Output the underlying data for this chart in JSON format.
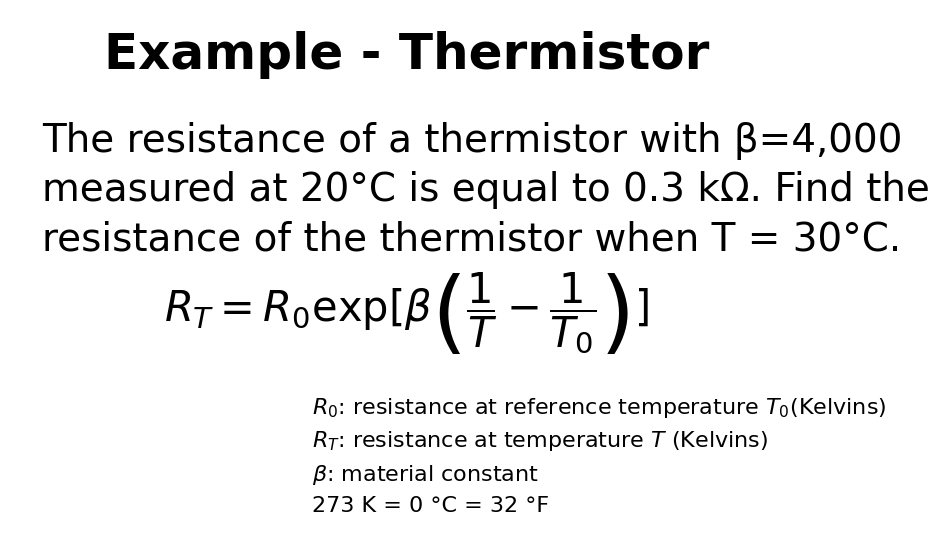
{
  "title": "Example - Thermistor",
  "background_color": "#ffffff",
  "text_color": "#000000",
  "title_fontsize": 36,
  "title_fontweight": "bold",
  "body_text_line1": "The resistance of a thermistor with β=4,000",
  "body_text_line2": "measured at 20°C is equal to 0.3 kΩ. Find the",
  "body_text_line3": "resistance of the thermistor when T = 30°C.",
  "note1": "$R_0$: resistance at reference temperature $T_0$(Kelvins)",
  "note2": "$R_T$: resistance at temperature $T$ (Kelvins)",
  "note3": "$\\beta$: material constant",
  "note4": "273 K = 0 °C = 32 °F",
  "body_fontsize": 28,
  "formula_fontsize": 30,
  "note_fontsize": 16
}
